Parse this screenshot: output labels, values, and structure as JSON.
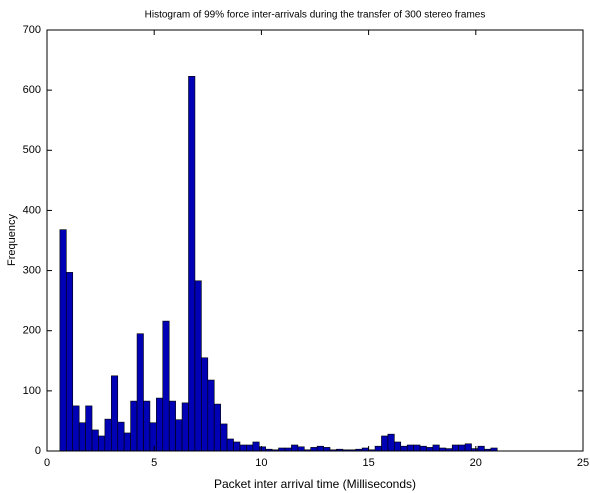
{
  "chart_data": {
    "type": "histogram",
    "title": "Histogram of 99% force inter-arrivals during the transfer of 300 stereo frames",
    "x_label": "Packet inter arrival time (Milliseconds)",
    "y_label": "Frequency",
    "bins": [
      0.6,
      0.9,
      1.2,
      1.5,
      1.8,
      2.1,
      2.4,
      2.7,
      3.0,
      3.3,
      3.6,
      3.9,
      4.2,
      4.5,
      4.8,
      5.1,
      5.4,
      5.7,
      6.0,
      6.3,
      6.6,
      6.9,
      7.2,
      7.5,
      7.8,
      8.1,
      8.4,
      8.7,
      9.0,
      9.3,
      9.6,
      9.9,
      10.2,
      10.5,
      10.8,
      11.1,
      11.4,
      11.7,
      12.0,
      12.3,
      12.6,
      12.9,
      13.2,
      13.5,
      13.8,
      14.1,
      14.4,
      14.7,
      15.0,
      15.3,
      15.6,
      15.9,
      16.2,
      16.5,
      16.8,
      17.1,
      17.4,
      17.7,
      18.0,
      18.3,
      18.6,
      18.9,
      19.2,
      19.5,
      19.8,
      20.1,
      20.4,
      20.7,
      21.0
    ],
    "values": [
      368,
      297,
      75,
      47,
      75,
      35,
      25,
      53,
      125,
      48,
      30,
      83,
      195,
      83,
      47,
      88,
      216,
      83,
      52,
      80,
      623,
      283,
      155,
      118,
      78,
      45,
      20,
      15,
      10,
      10,
      15,
      7,
      3,
      2,
      5,
      5,
      10,
      7,
      2,
      6,
      8,
      6,
      2,
      3,
      2,
      2,
      3,
      5,
      2,
      8,
      25,
      28,
      15,
      8,
      10,
      10,
      8,
      6,
      10,
      5,
      4,
      10,
      10,
      12,
      4,
      8,
      3,
      5
    ],
    "color": "#0000b4",
    "xlim": [
      0,
      25
    ],
    "xticks": [
      0,
      5,
      10,
      15,
      20,
      25
    ],
    "ylim": [
      0,
      700
    ],
    "yticks": [
      0,
      100,
      200,
      300,
      400,
      500,
      600,
      700
    ]
  }
}
